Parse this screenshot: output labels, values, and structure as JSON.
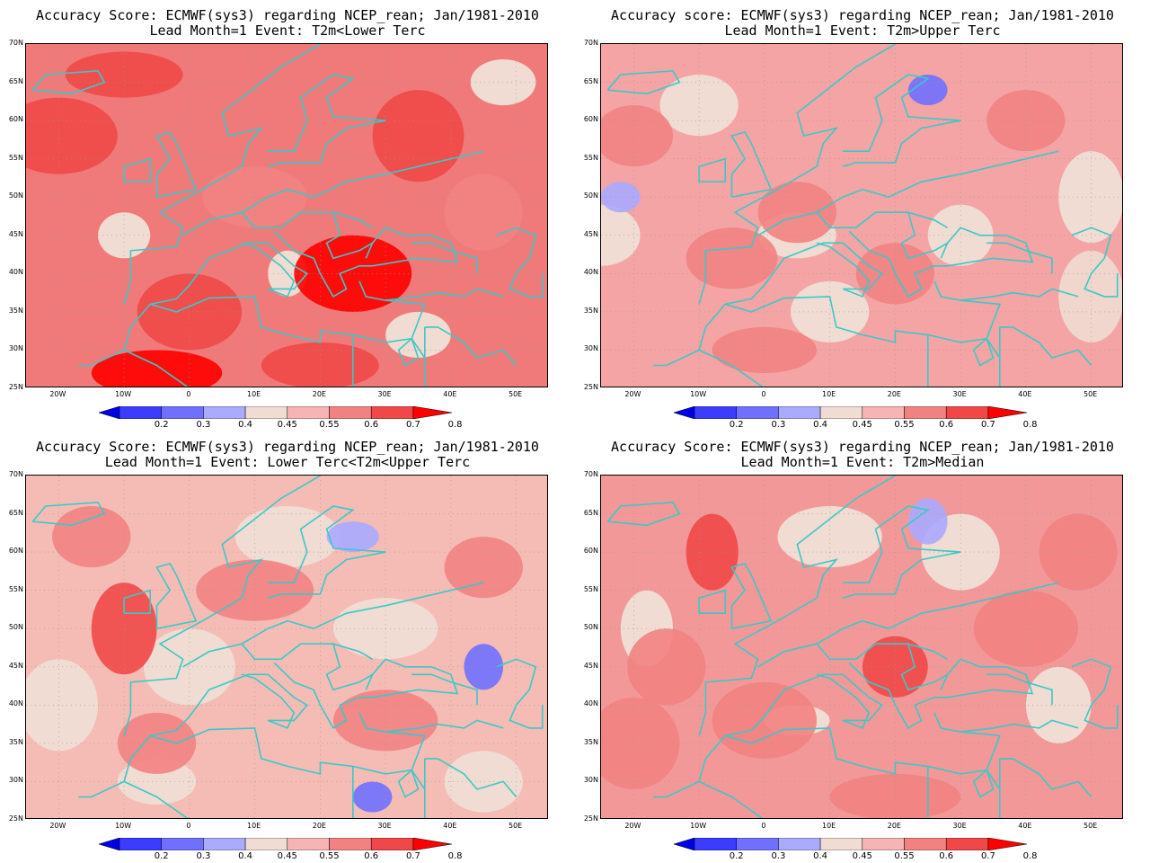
{
  "panels": [
    {
      "title_line1": "Accuracy Score: ECMWF(sys3) regarding NCEP_rean; Jan/1981-2010",
      "title_line2": "Lead Month=1 Event: T2m<Lower Terc",
      "dominant_color": "#f07a7a"
    },
    {
      "title_line1": "Accuracy score: ECMWF(sys3) regarding NCEP_rean; Jan/1981-2010",
      "title_line2": "Lead Month=1 Event: T2m>Upper Terc",
      "dominant_color": "#f4a4a4"
    },
    {
      "title_line1": "Accuracy Score: ECMWF(sys3) regarding NCEP_rean; Jan/1981-2010",
      "title_line2": "Lead Month=1 Event: Lower Terc<T2m<Upper Terc",
      "dominant_color": "#f5bcb6"
    },
    {
      "title_line1": "Accuracy Score: ECMWF(sys3) regarding NCEP_rean; Jan/1981-2010",
      "title_line2": "Lead Month=1 Event: T2m>Median",
      "dominant_color": "#f39898"
    }
  ],
  "lat_labels": [
    "70N",
    "65N",
    "60N",
    "55N",
    "50N",
    "45N",
    "40N",
    "35N",
    "30N",
    "25N"
  ],
  "lon_labels": [
    "20W",
    "10W",
    "0",
    "10E",
    "20E",
    "30E",
    "40E",
    "50E"
  ],
  "colorbar": {
    "labels": [
      "0.2",
      "0.3",
      "0.4",
      "0.45",
      "0.55",
      "0.6",
      "0.7",
      "0.8"
    ],
    "colors": [
      "#0000e6",
      "#3c3cff",
      "#7070ff",
      "#aaaaff",
      "#f0dcd2",
      "#f6b4b4",
      "#f28282",
      "#f04848",
      "#ff0000"
    ]
  },
  "coastline_color": "#3cc8c8"
}
